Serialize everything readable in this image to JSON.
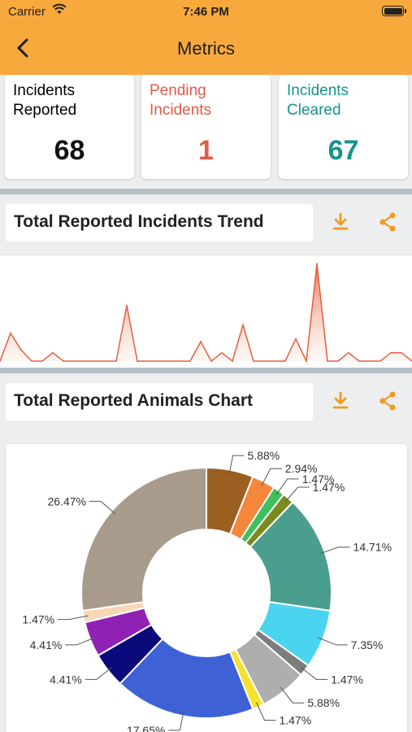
{
  "status_bar": {
    "carrier": "Carrier",
    "time": "7:46 PM"
  },
  "nav": {
    "title": "Metrics",
    "icons": {
      "back": "chevron-left-icon"
    }
  },
  "colors": {
    "accent": "#f8a93c",
    "pending": "#e25b4b",
    "cleared": "#15958a"
  },
  "metrics": [
    {
      "label": "Incidents Reported",
      "value": "68",
      "color": "#111111"
    },
    {
      "label": "Pending Incidents",
      "value": "1",
      "color": "#e25b4b"
    },
    {
      "label": "Incidents Cleared",
      "value": "67",
      "color": "#15958a"
    }
  ],
  "sections": {
    "trend": {
      "title": "Total Reported Incidents Trend",
      "icons": [
        "download-icon",
        "share-icon"
      ]
    },
    "animals": {
      "title": "Total Reported Animals Chart",
      "icons": [
        "download-icon",
        "share-icon"
      ]
    }
  },
  "chart_data": [
    {
      "type": "area",
      "series": [
        {
          "values": [
            0,
            1,
            0.4,
            0,
            0,
            0.3,
            0,
            0,
            0,
            0,
            0,
            0,
            2,
            0,
            0,
            0,
            0,
            0,
            0,
            0.7,
            0,
            0.3,
            0,
            1.3,
            0,
            0,
            0,
            0,
            0.8,
            0,
            3.5,
            0,
            0,
            0.3,
            0,
            0,
            0,
            0.3,
            0.3,
            0
          ]
        }
      ]
    },
    {
      "type": "pie",
      "values": [
        5.88,
        2.94,
        1.47,
        1.47,
        14.71,
        7.35,
        1.47,
        5.88,
        1.47,
        17.65,
        4.41,
        4.41,
        1.47,
        26.47
      ],
      "labels": [
        "5.88%",
        "2.94%",
        "1.47%",
        "1.47%",
        "14.71%",
        "7.35%",
        "1.47%",
        "5.88%",
        "1.47%",
        "17.65%",
        "4.41%",
        "4.41%",
        "1.47%",
        "26.47%"
      ],
      "colors": [
        "#9a5f21",
        "#f4873a",
        "#3fc05a",
        "#7a8b1e",
        "#4a9e8e",
        "#4bd4f0",
        "#7d7d7d",
        "#aeaeae",
        "#f6e12e",
        "#3e62d6",
        "#0a0a7a",
        "#8f21b5",
        "#f9d7b5",
        "#a89b8c"
      ]
    }
  ]
}
